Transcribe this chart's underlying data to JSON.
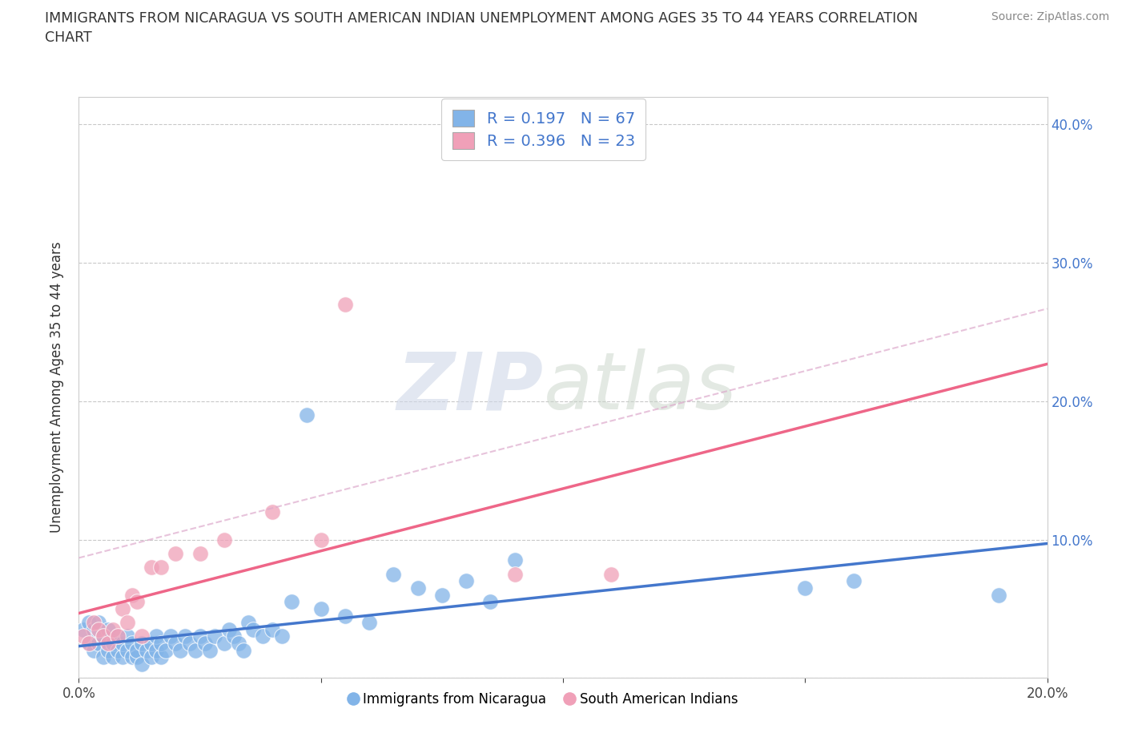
{
  "title": "IMMIGRANTS FROM NICARAGUA VS SOUTH AMERICAN INDIAN UNEMPLOYMENT AMONG AGES 35 TO 44 YEARS CORRELATION\nCHART",
  "source_text": "Source: ZipAtlas.com",
  "ylabel": "Unemployment Among Ages 35 to 44 years",
  "xlim": [
    0.0,
    0.2
  ],
  "ylim": [
    0.0,
    0.42
  ],
  "ytick_vals": [
    0.0,
    0.1,
    0.2,
    0.3,
    0.4
  ],
  "xtick_vals": [
    0.0,
    0.05,
    0.1,
    0.15,
    0.2
  ],
  "xtick_labels": [
    "0.0%",
    "",
    "",
    "",
    "20.0%"
  ],
  "ytick_labels": [
    "",
    "10.0%",
    "20.0%",
    "30.0%",
    "40.0%"
  ],
  "watermark_zip": "ZIP",
  "watermark_atlas": "atlas",
  "blue_scatter_color": "#82B4E8",
  "pink_scatter_color": "#F0A0B8",
  "blue_line_color": "#4477CC",
  "pink_line_color": "#EE6688",
  "pink_dashed_color": "#DDAACC",
  "tick_label_color": "#4477CC",
  "R_blue": 0.197,
  "N_blue": 67,
  "R_pink": 0.396,
  "N_pink": 23,
  "legend_label_blue": "Immigrants from Nicaragua",
  "legend_label_pink": "South American Indians",
  "blue_x": [
    0.001,
    0.002,
    0.002,
    0.003,
    0.003,
    0.004,
    0.004,
    0.005,
    0.005,
    0.006,
    0.006,
    0.007,
    0.007,
    0.008,
    0.008,
    0.009,
    0.009,
    0.01,
    0.01,
    0.011,
    0.011,
    0.012,
    0.012,
    0.013,
    0.013,
    0.014,
    0.015,
    0.015,
    0.016,
    0.016,
    0.017,
    0.017,
    0.018,
    0.019,
    0.02,
    0.021,
    0.022,
    0.023,
    0.024,
    0.025,
    0.026,
    0.027,
    0.028,
    0.03,
    0.031,
    0.032,
    0.033,
    0.034,
    0.035,
    0.036,
    0.038,
    0.04,
    0.042,
    0.044,
    0.047,
    0.05,
    0.055,
    0.06,
    0.065,
    0.07,
    0.075,
    0.08,
    0.085,
    0.09,
    0.15,
    0.16,
    0.19
  ],
  "blue_y": [
    0.035,
    0.025,
    0.04,
    0.02,
    0.035,
    0.025,
    0.04,
    0.015,
    0.03,
    0.02,
    0.035,
    0.015,
    0.025,
    0.02,
    0.03,
    0.015,
    0.025,
    0.02,
    0.03,
    0.015,
    0.025,
    0.015,
    0.02,
    0.01,
    0.025,
    0.02,
    0.015,
    0.025,
    0.02,
    0.03,
    0.015,
    0.025,
    0.02,
    0.03,
    0.025,
    0.02,
    0.03,
    0.025,
    0.02,
    0.03,
    0.025,
    0.02,
    0.03,
    0.025,
    0.035,
    0.03,
    0.025,
    0.02,
    0.04,
    0.035,
    0.03,
    0.035,
    0.03,
    0.055,
    0.19,
    0.05,
    0.045,
    0.04,
    0.075,
    0.065,
    0.06,
    0.07,
    0.055,
    0.085,
    0.065,
    0.07,
    0.06
  ],
  "pink_x": [
    0.001,
    0.002,
    0.003,
    0.004,
    0.005,
    0.006,
    0.007,
    0.008,
    0.009,
    0.01,
    0.011,
    0.012,
    0.013,
    0.015,
    0.017,
    0.02,
    0.025,
    0.03,
    0.04,
    0.05,
    0.055,
    0.09,
    0.11
  ],
  "pink_y": [
    0.03,
    0.025,
    0.04,
    0.035,
    0.03,
    0.025,
    0.035,
    0.03,
    0.05,
    0.04,
    0.06,
    0.055,
    0.03,
    0.08,
    0.08,
    0.09,
    0.09,
    0.1,
    0.12,
    0.1,
    0.27,
    0.075,
    0.075
  ]
}
